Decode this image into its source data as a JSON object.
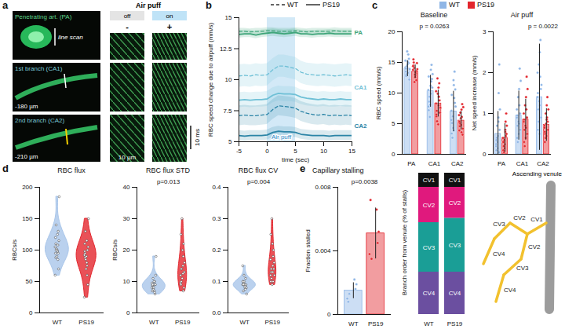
{
  "image_panel": {
    "panel": "a",
    "images": [
      {
        "label": "Penetrating art. (PA)",
        "color": "#5fd38a"
      },
      {
        "label": "1st branch (CA1)",
        "color": "#7ccad9",
        "depth": "-180 µm"
      },
      {
        "label": "2nd branch (CA2)",
        "color": "#7ccad9",
        "depth": "-210 µm"
      }
    ],
    "line_scan": "line scan",
    "stimulus": "Air puff",
    "states": [
      {
        "label": "off",
        "sign": "-"
      },
      {
        "label": "on",
        "sign": "+"
      }
    ],
    "scale_bars": [
      "10 µm",
      "10 ms"
    ]
  },
  "chart_data": [
    {
      "panel": "b",
      "type": "line",
      "x_label": "time (sec)",
      "y_label": "RBC speed change due to airpuff (mm/s)",
      "x": [
        -5,
        -4,
        -3,
        -2,
        -1,
        0,
        1,
        2,
        3,
        4,
        5,
        6,
        7,
        8,
        9,
        10,
        11,
        12,
        13,
        14,
        15
      ],
      "xlim": [
        -5,
        15
      ],
      "xticks": [
        -5,
        0,
        5,
        10,
        15
      ],
      "ylim": [
        5,
        15
      ],
      "yticks": [
        5,
        7.5,
        10,
        12.5,
        15
      ],
      "legend": "top",
      "annotations": [
        {
          "text": "Air puff",
          "x_start": 0,
          "x_end": 5
        }
      ],
      "series": [
        {
          "name": "WT",
          "group": "PA",
          "color": "#3fa57a",
          "line_style": "dashed",
          "error": 0.25,
          "values": [
            13.9,
            13.9,
            13.85,
            13.9,
            13.9,
            13.95,
            13.95,
            13.9,
            13.9,
            13.9,
            13.95,
            13.9,
            13.85,
            13.9,
            13.9,
            13.9,
            13.9,
            13.95,
            13.9,
            13.9,
            13.9
          ]
        },
        {
          "name": "PS19",
          "group": "PA",
          "color": "#3fa57a",
          "line_style": "solid",
          "error": 0.3,
          "values": [
            13.65,
            13.7,
            13.7,
            13.6,
            13.7,
            13.75,
            13.8,
            13.75,
            13.7,
            13.75,
            13.8,
            13.7,
            13.7,
            13.65,
            13.7,
            13.7,
            13.75,
            13.7,
            13.7,
            13.7,
            13.7
          ]
        },
        {
          "name": "WT",
          "group": "CA1",
          "color": "#6fc0d6",
          "line_style": "dashed",
          "error": 0.9,
          "values": [
            10.3,
            10.35,
            10.3,
            10.4,
            10.35,
            10.4,
            10.8,
            11.1,
            11.1,
            11.0,
            10.9,
            10.6,
            10.45,
            10.4,
            10.35,
            10.4,
            10.35,
            10.3,
            10.35,
            10.4,
            10.35
          ]
        },
        {
          "name": "PS19",
          "group": "CA1",
          "color": "#6fc0d6",
          "line_style": "solid",
          "error": 0.6,
          "values": [
            8.35,
            8.4,
            8.35,
            8.4,
            8.4,
            8.45,
            8.75,
            8.9,
            8.85,
            8.85,
            8.8,
            8.6,
            8.5,
            8.45,
            8.4,
            8.45,
            8.4,
            8.4,
            8.45,
            8.4,
            8.4
          ]
        },
        {
          "name": "WT",
          "group": "CA2",
          "color": "#2b84a6",
          "line_style": "dashed",
          "error": 0.8,
          "values": [
            7.1,
            7.15,
            7.1,
            7.1,
            7.15,
            7.2,
            7.6,
            7.9,
            7.85,
            7.8,
            7.7,
            7.45,
            7.3,
            7.2,
            7.15,
            7.2,
            7.1,
            7.15,
            7.1,
            7.15,
            7.1
          ]
        },
        {
          "name": "PS19",
          "group": "CA2",
          "color": "#2b84a6",
          "line_style": "solid",
          "error": 0.4,
          "values": [
            5.5,
            5.45,
            5.5,
            5.5,
            5.5,
            5.55,
            5.75,
            5.85,
            5.8,
            5.8,
            5.75,
            5.6,
            5.55,
            5.5,
            5.5,
            5.5,
            5.45,
            5.5,
            5.5,
            5.5,
            5.5
          ]
        }
      ]
    },
    {
      "panel": "c",
      "type": "bar",
      "title": "Baseline",
      "y_label": "RBC speed (mm/s)",
      "categories": [
        "PA",
        "CA1",
        "CA2"
      ],
      "ylim": [
        0,
        20
      ],
      "yticks": [
        0,
        5,
        10,
        15,
        20
      ],
      "legend": "top",
      "annotations": [
        {
          "text": "p = 0.0263",
          "category": "CA1"
        }
      ],
      "series": [
        {
          "name": "WT",
          "color": "#8fb6e6",
          "values": [
            14,
            10.3,
            7
          ],
          "error": [
            1.3,
            2.6,
            3.3
          ],
          "points": [
            [
              14.2,
              15.1,
              13.5,
              16.3,
              12.8,
              14.9,
              13.1,
              15.6,
              14.4,
              12.2,
              16.8,
              13.9,
              14.7,
              15.3,
              13.3,
              14.0
            ],
            [
              10.5,
              13.8,
              7.2,
              11.9,
              8.6,
              14.6,
              9.4,
              12.3,
              6.1,
              10.9,
              8.1,
              13.1,
              11.2,
              7.8,
              9.9,
              12.7
            ],
            [
              7.1,
              11.3,
              3.4,
              9.2,
              5.1,
              13.5,
              2.7,
              8.4,
              6.2,
              10.6,
              4.3,
              7.8,
              12.1,
              5.6,
              3.9,
              9.7
            ]
          ]
        },
        {
          "name": "PS19",
          "color": "#e3262d",
          "values": [
            13.5,
            8.3,
            5.5
          ],
          "error": [
            1.1,
            2.2,
            1.5
          ],
          "points": [
            [
              13.8,
              12.9,
              14.5,
              13.2,
              15.0,
              12.1,
              14.1,
              13.6,
              11.8,
              14.9,
              13.0,
              13.9,
              12.6,
              14.4,
              13.4,
              15.5
            ],
            [
              8.3,
              10.9,
              6.2,
              9.4,
              7.1,
              11.6,
              5.4,
              8.8,
              12.4,
              6.8,
              9.9,
              7.6,
              4.9,
              10.3,
              8.0,
              6.5
            ],
            [
              5.4,
              7.3,
              3.9,
              6.1,
              4.6,
              8.2,
              5.0,
              3.2,
              6.8,
              4.2,
              5.9,
              7.7,
              4.8,
              6.4,
              3.6,
              5.3
            ]
          ]
        }
      ]
    },
    {
      "type": "bar",
      "title": "Air puff",
      "y_label": "Net speed increase (mm/s)",
      "categories": [
        "PA",
        "CA1",
        "CA2"
      ],
      "ylim": [
        0,
        3
      ],
      "yticks": [
        0,
        1,
        2,
        3
      ],
      "annotations": [
        {
          "text": "p = 0.0022",
          "category": "CA2"
        }
      ],
      "series": [
        {
          "name": "WT",
          "color": "#8fb6e6",
          "values": [
            0.5,
            0.95,
            1.4
          ],
          "error": [
            0.55,
            0.6,
            1.3
          ],
          "points": [
            [
              0.2,
              0.9,
              0.1,
              1.5,
              0.4,
              0.05,
              0.7,
              2.2,
              0.3,
              0.6,
              0.15,
              1.1,
              0.45,
              0.25,
              0.8,
              0.35
            ],
            [
              0.9,
              1.6,
              0.4,
              1.2,
              0.7,
              2.1,
              0.3,
              1.0,
              1.4,
              0.6,
              0.8,
              1.8,
              0.5,
              1.1,
              0.75,
              0.95
            ],
            [
              1.4,
              2.5,
              0.6,
              1.9,
              1.1,
              2.8,
              0.8,
              1.6,
              2.2,
              0.9,
              1.3,
              1.7,
              0.5,
              2.0,
              1.2,
              1.5
            ]
          ]
        },
        {
          "name": "PS19",
          "color": "#e3262d",
          "values": [
            0.4,
            0.85,
            0.72
          ],
          "error": [
            0.35,
            0.5,
            0.4
          ],
          "points": [
            [
              0.3,
              0.6,
              0.1,
              0.8,
              0.2,
              0.45,
              0.05,
              1.0,
              0.35,
              0.5,
              0.15,
              0.7,
              0.25,
              0.4,
              0.55,
              0.3
            ],
            [
              0.8,
              1.4,
              0.3,
              1.1,
              0.6,
              1.9,
              0.2,
              0.9,
              1.2,
              0.5,
              0.7,
              1.6,
              0.4,
              1.0,
              0.65,
              0.85
            ],
            [
              0.7,
              1.2,
              0.3,
              0.9,
              0.5,
              1.4,
              0.4,
              0.8,
              1.0,
              0.6,
              0.75,
              1.1,
              0.45,
              0.65,
              0.85,
              0.55
            ]
          ]
        }
      ]
    },
    {
      "panel": "d",
      "type": "violin",
      "title": "RBC flux",
      "y_label": "RBCs/s",
      "categories": [
        "WT",
        "PS19"
      ],
      "colors": [
        "#a9c6ea",
        "#e3262d"
      ],
      "ylim": [
        0,
        200
      ],
      "yticks": [
        0,
        50,
        100,
        150,
        200
      ],
      "points": [
        [
          105,
          98,
          120,
          85,
          110,
          95,
          140,
          70,
          102,
          115,
          90,
          185,
          100,
          60,
          125,
          95,
          108,
          88,
          130,
          100
        ],
        [
          92,
          80,
          110,
          60,
          95,
          100,
          130,
          45,
          85,
          105,
          70,
          150,
          90,
          25,
          115,
          98,
          75,
          88
        ]
      ]
    },
    {
      "type": "violin",
      "title": "RBC flux STD",
      "y_label": "RBCs/s",
      "categories": [
        "WT",
        "PS19"
      ],
      "colors": [
        "#a9c6ea",
        "#e3262d"
      ],
      "ylim": [
        0,
        40
      ],
      "yticks": [
        0,
        10,
        20,
        30,
        40
      ],
      "annotations": [
        {
          "text": "p=0.013"
        }
      ],
      "points": [
        [
          8,
          9,
          7,
          10,
          8.5,
          6,
          11,
          9,
          7.5,
          12,
          8,
          18,
          10,
          9.5,
          7,
          8.8,
          6.5,
          9
        ],
        [
          12,
          15,
          9,
          18,
          10,
          22,
          14,
          8,
          30,
          13,
          11,
          16,
          20,
          9.5,
          12.5,
          25,
          7,
          14
        ]
      ]
    },
    {
      "type": "violin",
      "title": "RBC flux CV",
      "categories": [
        "WT",
        "PS19"
      ],
      "colors": [
        "#a9c6ea",
        "#e3262d"
      ],
      "ylim": [
        0,
        0.4
      ],
      "yticks": [
        {
          "value": 0,
          "label": "0.0"
        },
        0.1,
        0.2,
        0.3,
        0.4
      ],
      "annotations": [
        {
          "text": "p=0.004"
        }
      ],
      "points": [
        [
          0.09,
          0.08,
          0.1,
          0.085,
          0.07,
          0.11,
          0.095,
          0.09,
          0.12,
          0.08,
          0.1,
          0.06,
          0.09,
          0.15,
          0.085,
          0.1,
          0.075,
          0.09
        ],
        [
          0.12,
          0.15,
          0.1,
          0.18,
          0.13,
          0.2,
          0.11,
          0.14,
          0.3,
          0.16,
          0.09,
          0.12,
          0.22,
          0.17,
          0.13,
          0.25,
          0.1,
          0.14
        ]
      ]
    },
    {
      "panel": "e",
      "type": "bar",
      "title": "Capillary stalling",
      "y_label": "Fraction stalled",
      "categories": [
        "WT",
        "PS19"
      ],
      "values": [
        0.0015,
        0.0051
      ],
      "error": [
        0.0005,
        0.0016
      ],
      "colors": [
        "#8fb6e6",
        "#e3262d"
      ],
      "points": [
        [
          0.001,
          0.0022,
          0.0008,
          0.0016,
          0.0013,
          0.0019
        ],
        [
          0.0038,
          0.0066,
          0.0072,
          0.0045,
          0.0035,
          0.0052
        ]
      ],
      "ylim": [
        0,
        0.008
      ],
      "yticks": [
        0,
        0.004,
        0.008
      ],
      "annotations": [
        {
          "text": "p=0.0038"
        }
      ]
    },
    {
      "type": "bar",
      "stacked": true,
      "y_label": "Branch order from venule (% of stalls)",
      "categories": [
        "WT",
        "PS19"
      ],
      "ylim": [
        0,
        100
      ],
      "tick_labels": "x",
      "series": [
        {
          "name": "CV1",
          "color": "#111111",
          "values": [
            10,
            10
          ]
        },
        {
          "name": "CV2",
          "color": "#e0197d",
          "values": [
            25,
            22
          ]
        },
        {
          "name": "CV3",
          "color": "#1a9e96",
          "values": [
            35,
            38
          ]
        },
        {
          "name": "CV4",
          "color": "#6b4fa0",
          "values": [
            30,
            30
          ]
        }
      ]
    }
  ],
  "diagram": {
    "title": "Ascending venule",
    "labels": [
      "CV1",
      "CV2",
      "CV2",
      "CV3",
      "CV3",
      "CV4",
      "CV4"
    ]
  }
}
